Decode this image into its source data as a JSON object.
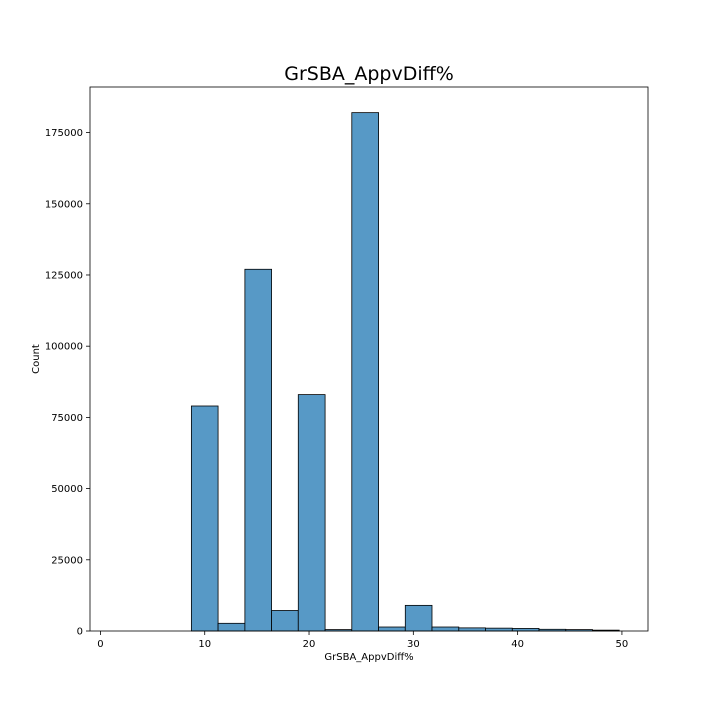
{
  "chart_data": {
    "type": "bar",
    "title": "GrSBA_AppvDiff%",
    "xlabel": "GrSBA_AppvDiff%",
    "ylabel": "Count",
    "xlim": [
      -1.0,
      52.5
    ],
    "ylim": [
      0,
      191000
    ],
    "xticks": [
      0,
      10,
      20,
      30,
      40,
      50
    ],
    "yticks": [
      0,
      25000,
      50000,
      75000,
      100000,
      125000,
      150000,
      175000
    ],
    "ytick_labels": [
      "0",
      "25000",
      "50000",
      "75000",
      "100000",
      "125000",
      "150000",
      "175000"
    ],
    "bins": [
      {
        "x0": 0.0,
        "x1": 2.56,
        "value": 0
      },
      {
        "x0": 2.56,
        "x1": 5.13,
        "value": 0
      },
      {
        "x0": 5.13,
        "x1": 7.69,
        "value": 0
      },
      {
        "x0": 8.72,
        "x1": 11.28,
        "value": 79000
      },
      {
        "x0": 11.28,
        "x1": 13.85,
        "value": 2700
      },
      {
        "x0": 13.85,
        "x1": 16.41,
        "value": 127000
      },
      {
        "x0": 16.41,
        "x1": 18.97,
        "value": 7200
      },
      {
        "x0": 18.97,
        "x1": 21.54,
        "value": 83000
      },
      {
        "x0": 21.54,
        "x1": 24.1,
        "value": 500
      },
      {
        "x0": 24.1,
        "x1": 26.67,
        "value": 182000
      },
      {
        "x0": 26.67,
        "x1": 29.23,
        "value": 1400
      },
      {
        "x0": 29.23,
        "x1": 31.79,
        "value": 9000
      },
      {
        "x0": 31.79,
        "x1": 34.36,
        "value": 1400
      },
      {
        "x0": 34.36,
        "x1": 36.92,
        "value": 1100
      },
      {
        "x0": 36.92,
        "x1": 39.49,
        "value": 1000
      },
      {
        "x0": 39.49,
        "x1": 42.05,
        "value": 900
      },
      {
        "x0": 42.05,
        "x1": 44.62,
        "value": 600
      },
      {
        "x0": 44.62,
        "x1": 47.18,
        "value": 500
      },
      {
        "x0": 47.18,
        "x1": 49.74,
        "value": 300
      }
    ],
    "bar_color": "#5799c6",
    "edge_color": "#000000",
    "grid": false,
    "legend": "none"
  }
}
